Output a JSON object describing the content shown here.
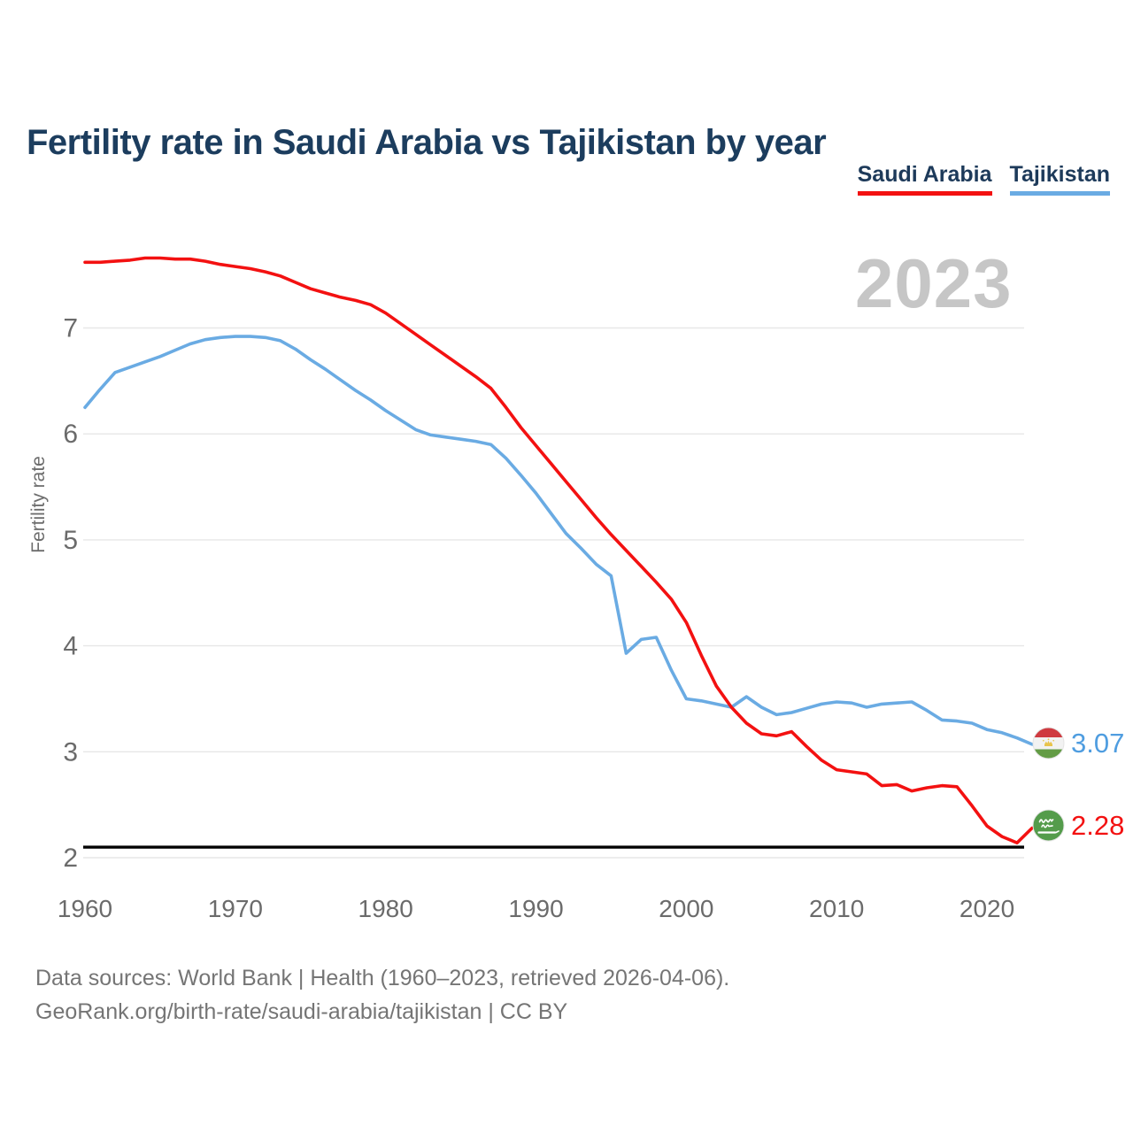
{
  "title": "Fertility rate in Saudi Arabia vs Tajikistan by year",
  "watermark": "2023",
  "legend": {
    "items": [
      {
        "label": "Saudi Arabia",
        "color": "#f31111"
      },
      {
        "label": "Tajikistan",
        "color": "#6aabe3"
      }
    ]
  },
  "y_axis": {
    "label": "Fertility rate"
  },
  "end_markers": [
    {
      "country": "Tajikistan",
      "value_label": "3.07",
      "color": "#4f9de0",
      "flag": "tajikistan-flag-icon"
    },
    {
      "country": "Saudi Arabia",
      "value_label": "2.28",
      "color": "#f31111",
      "flag": "saudi-arabia-flag-icon"
    }
  ],
  "footer": {
    "line1": "Data sources: World Bank | Health (1960–2023, retrieved 2026-04-06).",
    "line2": "GeoRank.org/birth-rate/saudi-arabia/tajikistan | CC BY"
  },
  "chart_data": {
    "type": "line",
    "title": "Fertility rate in Saudi Arabia vs Tajikistan by year",
    "xlabel": "",
    "ylabel": "Fertility rate",
    "xlim": [
      1960,
      2023
    ],
    "ylim": [
      1.93,
      7.85
    ],
    "grid": true,
    "legend_position": "top-right",
    "watermark": "2023",
    "xticks": [
      1960,
      1970,
      1980,
      1990,
      2000,
      2010,
      2020
    ],
    "yticks": [
      2,
      3,
      4,
      5,
      6,
      7
    ],
    "reference_line": {
      "value": 2.1,
      "color": "#000000"
    },
    "x": [
      1960,
      1961,
      1962,
      1963,
      1964,
      1965,
      1966,
      1967,
      1968,
      1969,
      1970,
      1971,
      1972,
      1973,
      1974,
      1975,
      1976,
      1977,
      1978,
      1979,
      1980,
      1981,
      1982,
      1983,
      1984,
      1985,
      1986,
      1987,
      1988,
      1989,
      1990,
      1991,
      1992,
      1993,
      1994,
      1995,
      1996,
      1997,
      1998,
      1999,
      2000,
      2001,
      2002,
      2003,
      2004,
      2005,
      2006,
      2007,
      2008,
      2009,
      2010,
      2011,
      2012,
      2013,
      2014,
      2015,
      2016,
      2017,
      2018,
      2019,
      2020,
      2021,
      2022,
      2023
    ],
    "series": [
      {
        "name": "Saudi Arabia",
        "color": "#f31111",
        "end_label": 2.28,
        "values": [
          7.62,
          7.62,
          7.63,
          7.64,
          7.66,
          7.66,
          7.65,
          7.65,
          7.63,
          7.6,
          7.58,
          7.56,
          7.53,
          7.49,
          7.43,
          7.37,
          7.33,
          7.29,
          7.26,
          7.22,
          7.14,
          7.04,
          6.94,
          6.84,
          6.74,
          6.64,
          6.54,
          6.43,
          6.25,
          6.06,
          5.89,
          5.72,
          5.55,
          5.38,
          5.21,
          5.05,
          4.9,
          4.75,
          4.6,
          4.44,
          4.22,
          3.91,
          3.62,
          3.42,
          3.27,
          3.17,
          3.15,
          3.19,
          3.05,
          2.92,
          2.83,
          2.81,
          2.79,
          2.68,
          2.69,
          2.63,
          2.66,
          2.68,
          2.67,
          2.49,
          2.3,
          2.2,
          2.14,
          2.28
        ]
      },
      {
        "name": "Tajikistan",
        "color": "#6aabe3",
        "end_label": 3.07,
        "values": [
          6.25,
          6.42,
          6.58,
          6.63,
          6.68,
          6.73,
          6.79,
          6.85,
          6.89,
          6.91,
          6.92,
          6.92,
          6.91,
          6.88,
          6.8,
          6.7,
          6.61,
          6.51,
          6.41,
          6.32,
          6.22,
          6.13,
          6.04,
          5.99,
          5.97,
          5.95,
          5.93,
          5.9,
          5.77,
          5.61,
          5.44,
          5.25,
          5.06,
          4.92,
          4.77,
          4.66,
          3.93,
          4.06,
          4.08,
          3.77,
          3.5,
          3.48,
          3.45,
          3.42,
          3.52,
          3.42,
          3.35,
          3.37,
          3.41,
          3.45,
          3.47,
          3.46,
          3.42,
          3.45,
          3.46,
          3.47,
          3.39,
          3.3,
          3.29,
          3.27,
          3.21,
          3.18,
          3.13,
          3.07
        ]
      }
    ]
  }
}
